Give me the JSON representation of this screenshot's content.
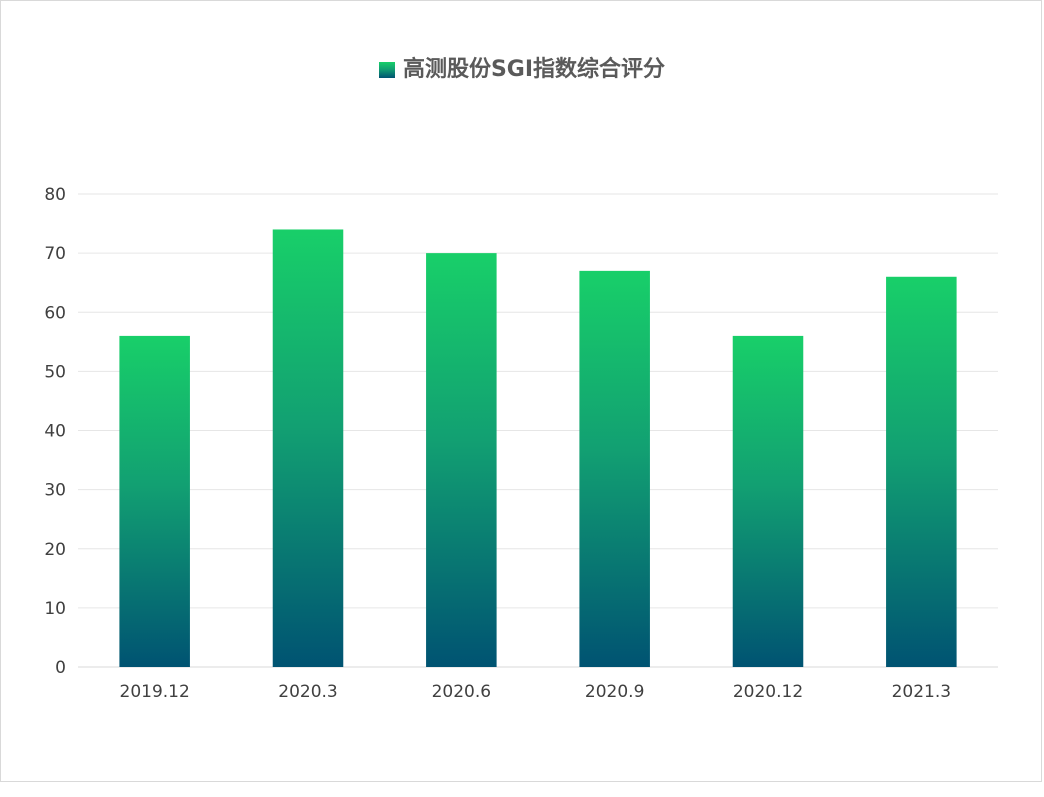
{
  "chart_data": {
    "type": "bar",
    "title": "",
    "xlabel": "",
    "ylabel": "",
    "categories": [
      "2019.12",
      "2020.3",
      "2020.6",
      "2020.9",
      "2020.12",
      "2021.3"
    ],
    "series": [
      {
        "name": "高测股份SGI指数综合评分",
        "values": [
          56,
          74,
          70,
          67,
          56,
          66
        ]
      }
    ],
    "ylim": [
      0,
      80
    ],
    "yticks": [
      "0",
      "10",
      "20",
      "30",
      "40",
      "50",
      "60",
      "70",
      "80"
    ],
    "grid": true,
    "legend_position": "top-center",
    "colors": {
      "bar_top": "#18cf69",
      "bar_bottom": "#005372",
      "grid": "#e6e6e6",
      "axis": "#d9d9d9"
    }
  }
}
